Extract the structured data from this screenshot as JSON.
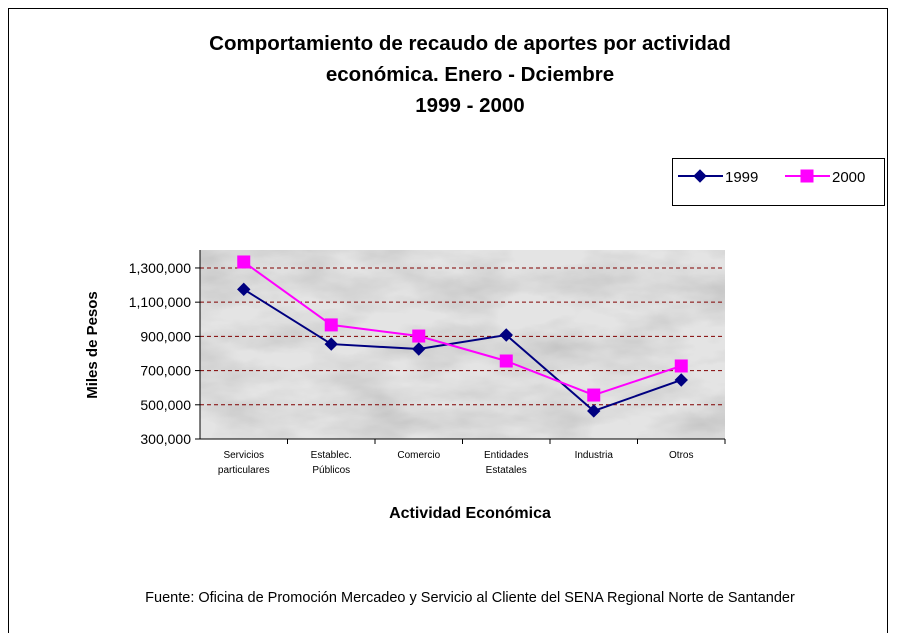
{
  "chart_data": {
    "type": "line",
    "title": [
      "Comportamiento de recaudo de aportes por actividad",
      "económica. Enero - Dciembre",
      "1999 - 2000"
    ],
    "ylabel": "Miles de Pesos",
    "xlabel": "Actividad Económica",
    "source": "Fuente: Oficina de Promoción Mercadeo y Servicio al Cliente del SENA Regional Norte de Santander",
    "categories": [
      "Servicios particulares",
      "Establec. Públicos",
      "Comercio",
      "Entidades Estatales",
      "Industria",
      "Otros"
    ],
    "series": [
      {
        "name": "1999",
        "color": "#000080",
        "marker": "diamond",
        "values": [
          1175000,
          855000,
          826000,
          908000,
          464000,
          645000
        ]
      },
      {
        "name": "2000",
        "color": "#ff00ff",
        "marker": "square",
        "values": [
          1335000,
          967000,
          902000,
          756000,
          557000,
          727000
        ]
      }
    ],
    "ylim": [
      300000,
      1405000
    ],
    "yticks": [
      {
        "value": 300000,
        "label": "300,000"
      },
      {
        "value": 500000,
        "label": "500,000"
      },
      {
        "value": 700000,
        "label": "700,000"
      },
      {
        "value": 900000,
        "label": "900,000"
      },
      {
        "value": 1100000,
        "label": "1,100,000"
      },
      {
        "value": 1300000,
        "label": "1,300,000"
      }
    ],
    "grid": true,
    "legend": "upper right"
  }
}
